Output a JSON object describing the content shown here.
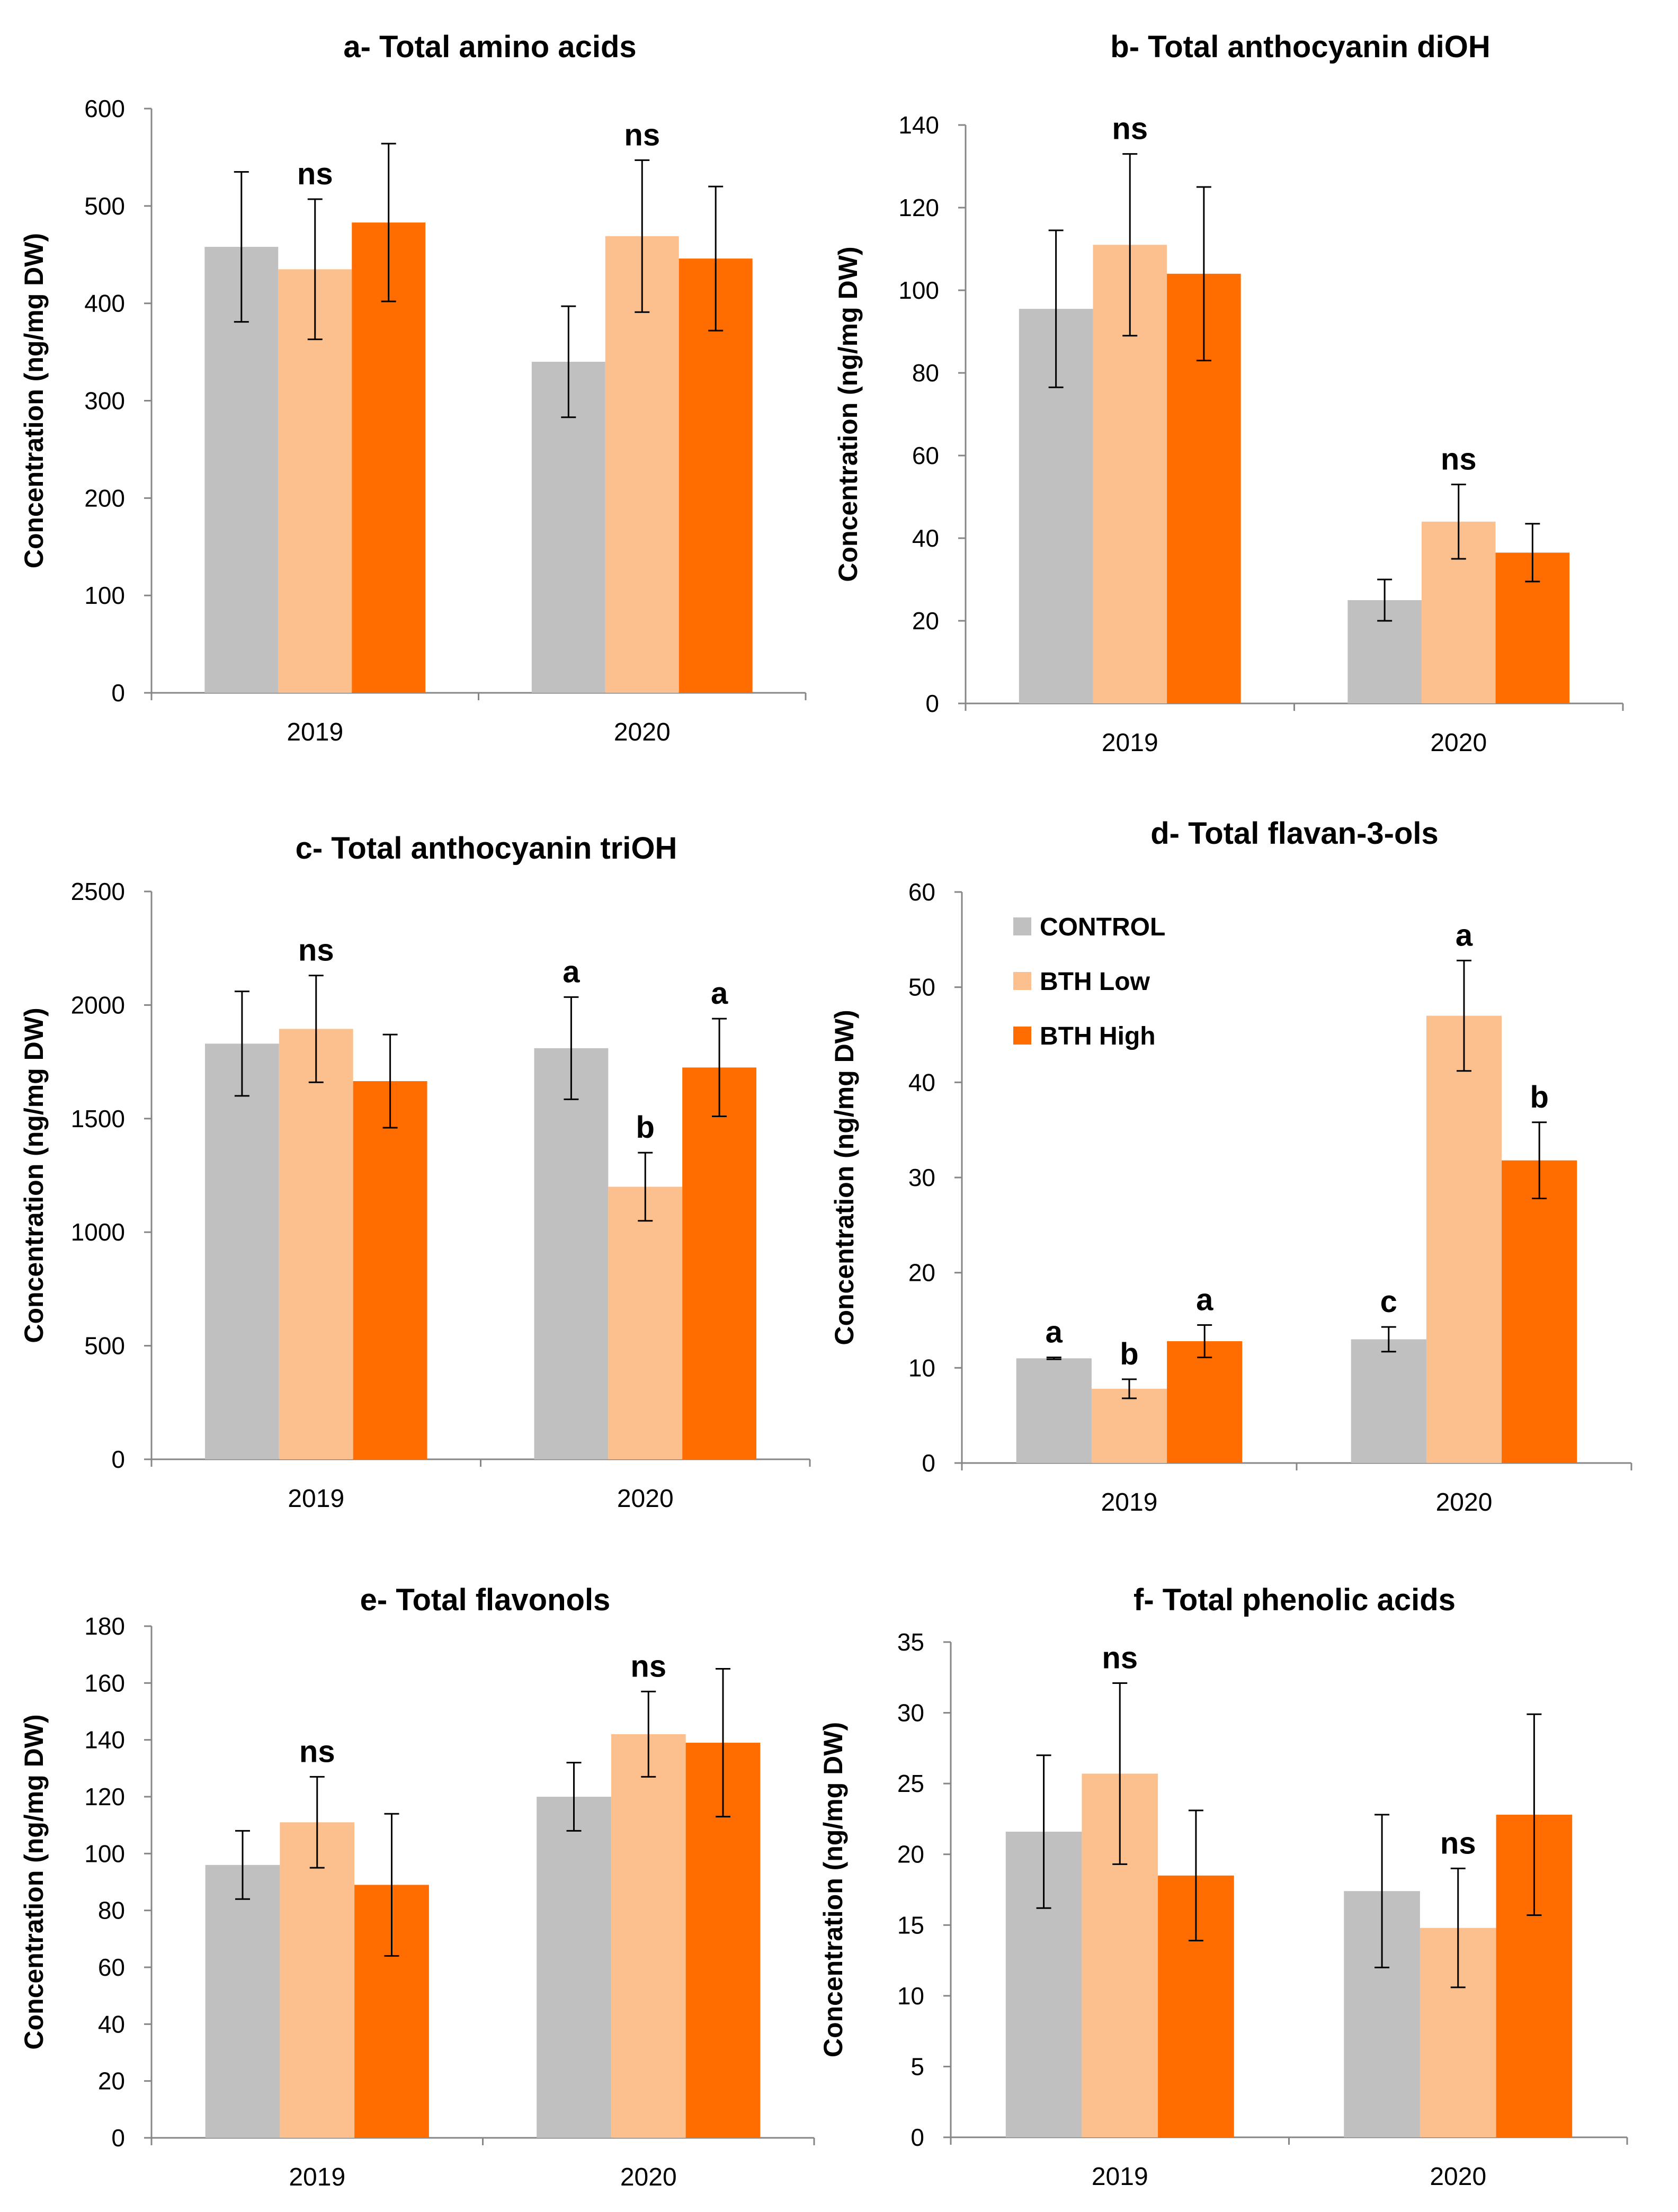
{
  "figure": {
    "panels": 6
  },
  "chart_data": [
    {
      "type": "bar",
      "title": "a- Total amino acids",
      "xlabel": "",
      "ylabel": "Concentration (ng/mg DW)",
      "categories": [
        "2019",
        "2020"
      ],
      "ylim": [
        0,
        600
      ],
      "yticks": [
        0,
        100,
        200,
        300,
        400,
        500,
        600
      ],
      "series": [
        {
          "name": "CONTROL",
          "color": "#c0c0c0",
          "values": [
            458,
            340
          ],
          "errors": [
            77,
            57
          ]
        },
        {
          "name": "BTH Low",
          "color": "#fbc08d",
          "values": [
            435,
            469
          ],
          "errors": [
            72,
            78
          ]
        },
        {
          "name": "BTH High",
          "color": "#ff6d00",
          "values": [
            483,
            446
          ],
          "errors": [
            81,
            74
          ]
        }
      ],
      "significance": [
        {
          "category": 0,
          "series": 1,
          "label": "ns"
        },
        {
          "category": 1,
          "series": 1,
          "label": "ns"
        }
      ]
    },
    {
      "type": "bar",
      "title": "b- Total anthocyanin diOH",
      "xlabel": "",
      "ylabel": "Concentration (ng/mg DW)",
      "categories": [
        "2019",
        "2020"
      ],
      "ylim": [
        0,
        140
      ],
      "yticks": [
        0,
        20,
        40,
        60,
        80,
        100,
        120,
        140
      ],
      "series": [
        {
          "name": "CONTROL",
          "color": "#c0c0c0",
          "values": [
            95.5,
            25
          ],
          "errors": [
            19,
            5
          ]
        },
        {
          "name": "BTH Low",
          "color": "#fbc08d",
          "values": [
            111,
            44
          ],
          "errors": [
            22,
            9
          ]
        },
        {
          "name": "BTH High",
          "color": "#ff6d00",
          "values": [
            104,
            36.5
          ],
          "errors": [
            21,
            7
          ]
        }
      ],
      "significance": [
        {
          "category": 0,
          "series": 1,
          "label": "ns"
        },
        {
          "category": 1,
          "series": 1,
          "label": "ns"
        }
      ]
    },
    {
      "type": "bar",
      "title": "c- Total anthocyanin triOH",
      "xlabel": "",
      "ylabel": "Concentration (ng/mg DW)",
      "categories": [
        "2019",
        "2020"
      ],
      "ylim": [
        0,
        2500
      ],
      "yticks": [
        0,
        500,
        1000,
        1500,
        2000,
        2500
      ],
      "series": [
        {
          "name": "CONTROL",
          "color": "#c0c0c0",
          "values": [
            1830,
            1810
          ],
          "errors": [
            230,
            225
          ]
        },
        {
          "name": "BTH Low",
          "color": "#fbc08d",
          "values": [
            1895,
            1200
          ],
          "errors": [
            235,
            150
          ]
        },
        {
          "name": "BTH High",
          "color": "#ff6d00",
          "values": [
            1665,
            1725
          ],
          "errors": [
            205,
            215
          ]
        }
      ],
      "significance": [
        {
          "category": 0,
          "series": 1,
          "label": "ns"
        },
        {
          "category": 1,
          "series": 0,
          "label": "a"
        },
        {
          "category": 1,
          "series": 1,
          "label": "b"
        },
        {
          "category": 1,
          "series": 2,
          "label": "a"
        }
      ]
    },
    {
      "type": "bar",
      "title": "d- Total flavan-3-ols",
      "xlabel": "",
      "ylabel": "Concentration (ng/mg DW)",
      "categories": [
        "2019",
        "2020"
      ],
      "ylim": [
        0,
        60
      ],
      "yticks": [
        0,
        10,
        20,
        30,
        40,
        50,
        60
      ],
      "legend": {
        "position": "top-left",
        "entries": [
          "CONTROL",
          "BTH Low",
          "BTH High"
        ]
      },
      "series": [
        {
          "name": "CONTROL",
          "color": "#c0c0c0",
          "values": [
            11,
            13
          ],
          "errors": [
            0.1,
            1.3
          ]
        },
        {
          "name": "BTH Low",
          "color": "#fbc08d",
          "values": [
            7.8,
            47
          ],
          "errors": [
            1,
            5.8
          ]
        },
        {
          "name": "BTH High",
          "color": "#ff6d00",
          "values": [
            12.8,
            31.8
          ],
          "errors": [
            1.7,
            4
          ]
        }
      ],
      "significance": [
        {
          "category": 0,
          "series": 0,
          "label": "a"
        },
        {
          "category": 0,
          "series": 1,
          "label": "b"
        },
        {
          "category": 0,
          "series": 2,
          "label": "a"
        },
        {
          "category": 1,
          "series": 0,
          "label": "c"
        },
        {
          "category": 1,
          "series": 1,
          "label": "a"
        },
        {
          "category": 1,
          "series": 2,
          "label": "b"
        }
      ]
    },
    {
      "type": "bar",
      "title": "e- Total flavonols",
      "xlabel": "",
      "ylabel": "Concentration (ng/mg DW)",
      "categories": [
        "2019",
        "2020"
      ],
      "ylim": [
        0,
        180
      ],
      "yticks": [
        0,
        20,
        40,
        60,
        80,
        100,
        120,
        140,
        160,
        180
      ],
      "series": [
        {
          "name": "CONTROL",
          "color": "#c0c0c0",
          "values": [
            96,
            120
          ],
          "errors": [
            12,
            12
          ]
        },
        {
          "name": "BTH Low",
          "color": "#fbc08d",
          "values": [
            111,
            142
          ],
          "errors": [
            16,
            15
          ]
        },
        {
          "name": "BTH High",
          "color": "#ff6d00",
          "values": [
            89,
            139
          ],
          "errors": [
            25,
            26
          ]
        }
      ],
      "significance": [
        {
          "category": 0,
          "series": 1,
          "label": "ns"
        },
        {
          "category": 1,
          "series": 1,
          "label": "ns"
        }
      ]
    },
    {
      "type": "bar",
      "title": "f- Total phenolic acids",
      "xlabel": "",
      "ylabel": "Concentration (ng/mg DW)",
      "categories": [
        "2019",
        "2020"
      ],
      "ylim": [
        0,
        35
      ],
      "yticks": [
        0,
        5,
        10,
        15,
        20,
        25,
        30,
        35
      ],
      "series": [
        {
          "name": "CONTROL",
          "color": "#c0c0c0",
          "values": [
            21.6,
            17.4
          ],
          "errors": [
            5.4,
            5.4
          ]
        },
        {
          "name": "BTH Low",
          "color": "#fbc08d",
          "values": [
            25.7,
            14.8
          ],
          "errors": [
            6.4,
            4.2
          ]
        },
        {
          "name": "BTH High",
          "color": "#ff6d00",
          "values": [
            18.5,
            22.8
          ],
          "errors": [
            4.6,
            7.1
          ]
        }
      ],
      "significance": [
        {
          "category": 0,
          "series": 1,
          "label": "ns"
        },
        {
          "category": 1,
          "series": 1,
          "label": "ns"
        }
      ]
    }
  ]
}
